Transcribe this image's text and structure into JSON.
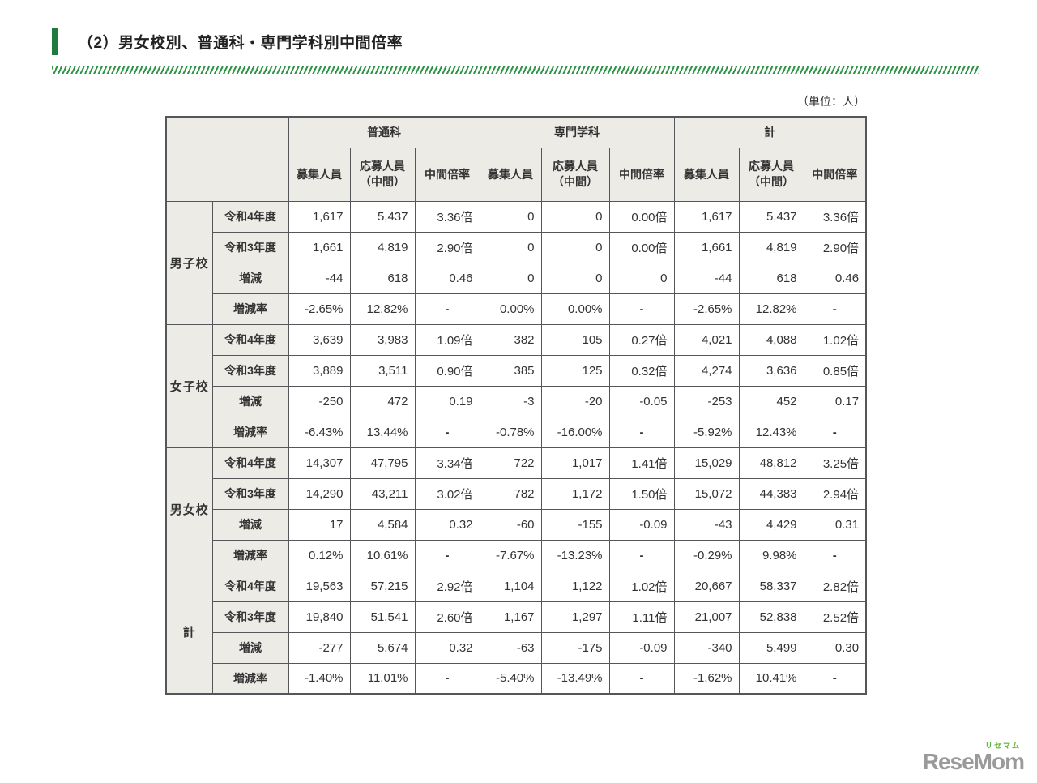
{
  "page": {
    "title": "（2）男女校別、普通科・専門学科別中間倍率",
    "unit_note": "（単位：人）",
    "logo": {
      "furigana": "リセマム",
      "text": "ReseMom"
    }
  },
  "colors": {
    "accent_green": "#1f7a3d",
    "hatch_green": "#2f9648",
    "header_bg": "#edebe6",
    "table_border": "#55565a",
    "logo_gray": "#9a9a9a",
    "logo_green": "#5cb531"
  },
  "table": {
    "column_groups": [
      "普通科",
      "専門学科",
      "計"
    ],
    "sub_headers": [
      "募集人員",
      "応募人員\n（中間）",
      "中間倍率"
    ],
    "row_groups": [
      {
        "label": "男子校",
        "rows": [
          {
            "label": "令和4年度",
            "values": [
              "1,617",
              "5,437",
              "3.36倍",
              "0",
              "0",
              "0.00倍",
              "1,617",
              "5,437",
              "3.36倍"
            ]
          },
          {
            "label": "令和3年度",
            "values": [
              "1,661",
              "4,819",
              "2.90倍",
              "0",
              "0",
              "0.00倍",
              "1,661",
              "4,819",
              "2.90倍"
            ]
          },
          {
            "label": "増減",
            "values": [
              "-44",
              "618",
              "0.46",
              "0",
              "0",
              "0",
              "-44",
              "618",
              "0.46"
            ]
          },
          {
            "label": "増減率",
            "values": [
              "-2.65%",
              "12.82%",
              "-",
              "0.00%",
              "0.00%",
              "-",
              "-2.65%",
              "12.82%",
              "-"
            ]
          }
        ]
      },
      {
        "label": "女子校",
        "rows": [
          {
            "label": "令和4年度",
            "values": [
              "3,639",
              "3,983",
              "1.09倍",
              "382",
              "105",
              "0.27倍",
              "4,021",
              "4,088",
              "1.02倍"
            ]
          },
          {
            "label": "令和3年度",
            "values": [
              "3,889",
              "3,511",
              "0.90倍",
              "385",
              "125",
              "0.32倍",
              "4,274",
              "3,636",
              "0.85倍"
            ]
          },
          {
            "label": "増減",
            "values": [
              "-250",
              "472",
              "0.19",
              "-3",
              "-20",
              "-0.05",
              "-253",
              "452",
              "0.17"
            ]
          },
          {
            "label": "増減率",
            "values": [
              "-6.43%",
              "13.44%",
              "-",
              "-0.78%",
              "-16.00%",
              "-",
              "-5.92%",
              "12.43%",
              "-"
            ]
          }
        ]
      },
      {
        "label": "男女校",
        "rows": [
          {
            "label": "令和4年度",
            "values": [
              "14,307",
              "47,795",
              "3.34倍",
              "722",
              "1,017",
              "1.41倍",
              "15,029",
              "48,812",
              "3.25倍"
            ]
          },
          {
            "label": "令和3年度",
            "values": [
              "14,290",
              "43,211",
              "3.02倍",
              "782",
              "1,172",
              "1.50倍",
              "15,072",
              "44,383",
              "2.94倍"
            ]
          },
          {
            "label": "増減",
            "values": [
              "17",
              "4,584",
              "0.32",
              "-60",
              "-155",
              "-0.09",
              "-43",
              "4,429",
              "0.31"
            ]
          },
          {
            "label": "増減率",
            "values": [
              "0.12%",
              "10.61%",
              "-",
              "-7.67%",
              "-13.23%",
              "-",
              "-0.29%",
              "9.98%",
              "-"
            ]
          }
        ]
      },
      {
        "label": "計",
        "rows": [
          {
            "label": "令和4年度",
            "values": [
              "19,563",
              "57,215",
              "2.92倍",
              "1,104",
              "1,122",
              "1.02倍",
              "20,667",
              "58,337",
              "2.82倍"
            ]
          },
          {
            "label": "令和3年度",
            "values": [
              "19,840",
              "51,541",
              "2.60倍",
              "1,167",
              "1,297",
              "1.11倍",
              "21,007",
              "52,838",
              "2.52倍"
            ]
          },
          {
            "label": "増減",
            "values": [
              "-277",
              "5,674",
              "0.32",
              "-63",
              "-175",
              "-0.09",
              "-340",
              "5,499",
              "0.30"
            ]
          },
          {
            "label": "増減率",
            "values": [
              "-1.40%",
              "11.01%",
              "-",
              "-5.40%",
              "-13.49%",
              "-",
              "-1.62%",
              "10.41%",
              "-"
            ]
          }
        ]
      }
    ]
  }
}
